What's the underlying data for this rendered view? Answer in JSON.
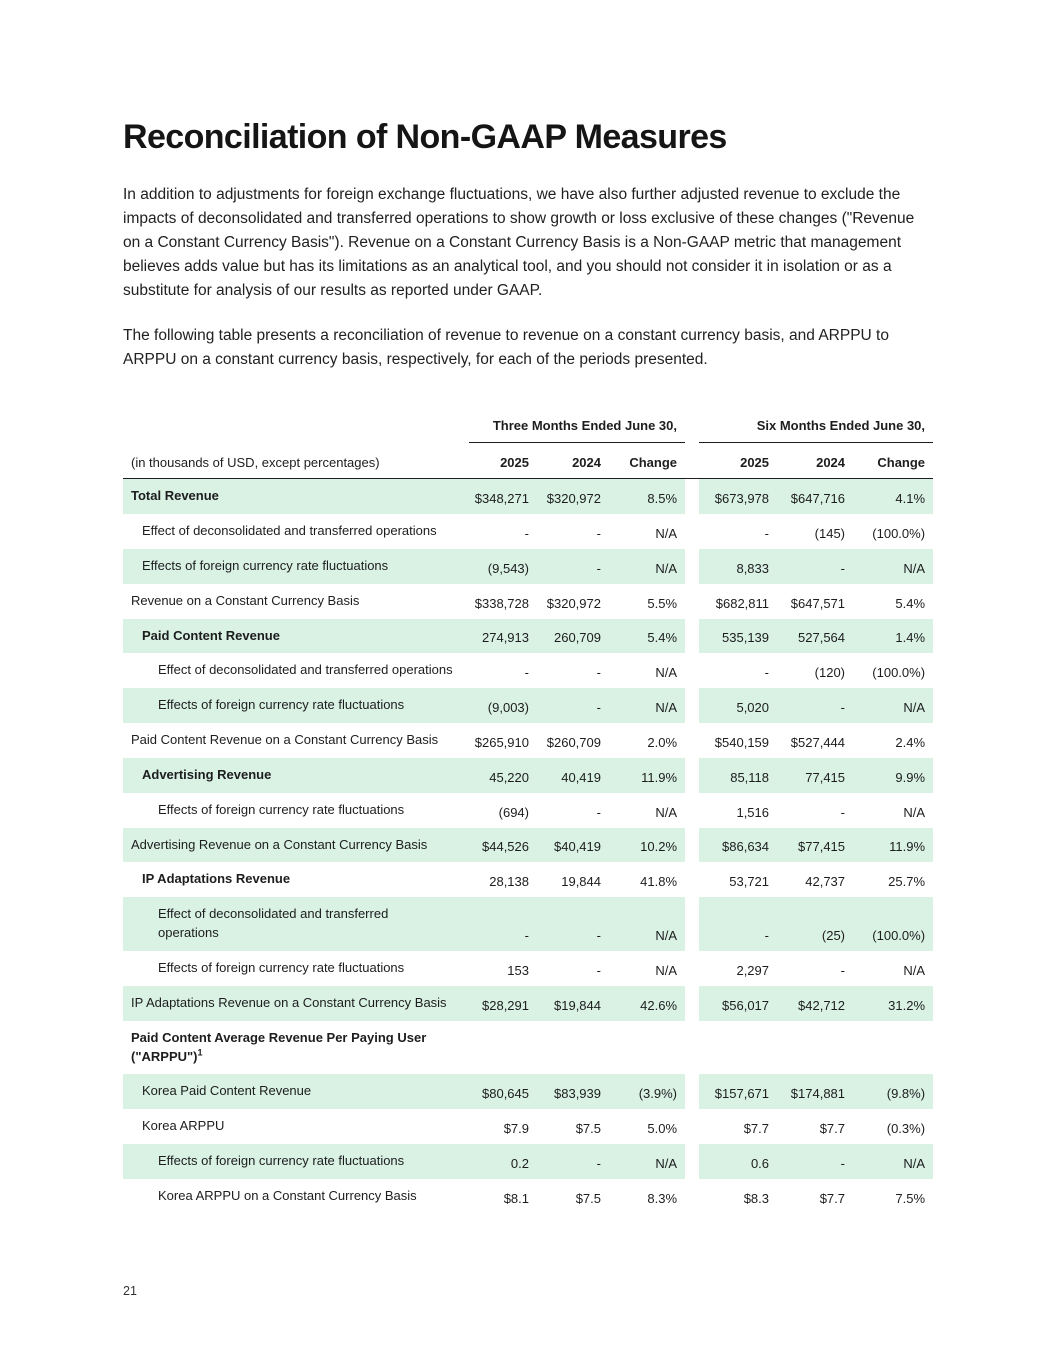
{
  "page": {
    "title": "Reconciliation of Non-GAAP Measures",
    "paragraphs": [
      "In addition to adjustments for foreign exchange fluctuations, we have also further adjusted revenue to exclude the impacts of deconsolidated and transferred operations to show growth or loss exclusive of these changes (\"Revenue on a Constant Currency Basis\"). Revenue on a Constant Currency Basis is a Non-GAAP metric that management believes adds value but has its limitations as an analytical tool, and you should not consider it in isolation or as a substitute for analysis of our results as reported under GAAP.",
      "The following table presents a reconciliation of revenue to revenue on a constant currency basis, and ARPPU to ARPPU on a constant currency basis, respectively, for each of the periods presented."
    ],
    "page_number": "21"
  },
  "table": {
    "group_headers": [
      "Three Months Ended June 30,",
      "Six Months Ended June 30,"
    ],
    "units_note": "(in thousands of USD, except percentages)",
    "column_headers": [
      "2025",
      "2024",
      "Change",
      "2025",
      "2024",
      "Change"
    ],
    "shade_color": "#d9f2e4",
    "rows": [
      {
        "label": "Total Revenue",
        "indent": 0,
        "bold": true,
        "shaded": true,
        "values": [
          "$348,271",
          "$320,972",
          "8.5%",
          "$673,978",
          "$647,716",
          "4.1%"
        ]
      },
      {
        "label": "Effect of deconsolidated and transferred operations",
        "indent": 1,
        "bold": false,
        "shaded": false,
        "values": [
          "-",
          "-",
          "N/A",
          "-",
          "(145)",
          "(100.0%)"
        ]
      },
      {
        "label": "Effects of foreign currency rate fluctuations",
        "indent": 1,
        "bold": false,
        "shaded": true,
        "values": [
          "(9,543)",
          "-",
          "N/A",
          "8,833",
          "-",
          "N/A"
        ]
      },
      {
        "label": "Revenue on a Constant Currency Basis",
        "indent": 0,
        "bold": false,
        "shaded": false,
        "values": [
          "$338,728",
          "$320,972",
          "5.5%",
          "$682,811",
          "$647,571",
          "5.4%"
        ]
      },
      {
        "label": "Paid Content Revenue",
        "indent": 1,
        "bold": true,
        "shaded": true,
        "values": [
          "274,913",
          "260,709",
          "5.4%",
          "535,139",
          "527,564",
          "1.4%"
        ]
      },
      {
        "label": "Effect of deconsolidated and transferred operations",
        "indent": 2,
        "bold": false,
        "shaded": false,
        "values": [
          "-",
          "-",
          "N/A",
          "-",
          "(120)",
          "(100.0%)"
        ]
      },
      {
        "label": "Effects of foreign currency rate fluctuations",
        "indent": 2,
        "bold": false,
        "shaded": true,
        "values": [
          "(9,003)",
          "-",
          "N/A",
          "5,020",
          "-",
          "N/A"
        ]
      },
      {
        "label": "Paid Content Revenue on a Constant Currency Basis",
        "indent": 0,
        "bold": false,
        "shaded": false,
        "values": [
          "$265,910",
          "$260,709",
          "2.0%",
          "$540,159",
          "$527,444",
          "2.4%"
        ]
      },
      {
        "label": "Advertising Revenue",
        "indent": 1,
        "bold": true,
        "shaded": true,
        "values": [
          "45,220",
          "40,419",
          "11.9%",
          "85,118",
          "77,415",
          "9.9%"
        ]
      },
      {
        "label": "Effects of foreign currency rate fluctuations",
        "indent": 2,
        "bold": false,
        "shaded": false,
        "values": [
          "(694)",
          "-",
          "N/A",
          "1,516",
          "-",
          "N/A"
        ]
      },
      {
        "label": "Advertising Revenue on a Constant Currency Basis",
        "indent": 0,
        "bold": false,
        "shaded": true,
        "values": [
          "$44,526",
          "$40,419",
          "10.2%",
          "$86,634",
          "$77,415",
          "11.9%"
        ]
      },
      {
        "label": "IP Adaptations Revenue",
        "indent": 1,
        "bold": true,
        "shaded": false,
        "values": [
          "28,138",
          "19,844",
          "41.8%",
          "53,721",
          "42,737",
          "25.7%"
        ]
      },
      {
        "label": "Effect of deconsolidated and transferred\noperations",
        "indent": 2,
        "bold": false,
        "shaded": true,
        "values": [
          "-",
          "-",
          "N/A",
          "-",
          "(25)",
          "(100.0%)"
        ]
      },
      {
        "label": "Effects of foreign currency rate fluctuations",
        "indent": 2,
        "bold": false,
        "shaded": false,
        "values": [
          "153",
          "-",
          "N/A",
          "2,297",
          "-",
          "N/A"
        ]
      },
      {
        "label": "IP Adaptations Revenue on a Constant Currency Basis",
        "indent": 0,
        "bold": false,
        "shaded": true,
        "values": [
          "$28,291",
          "$19,844",
          "42.6%",
          "$56,017",
          "$42,712",
          "31.2%"
        ]
      },
      {
        "label": "Paid Content Average Revenue Per Paying User (\"ARPPU\")",
        "sup": "1",
        "indent": 0,
        "bold": true,
        "shaded": false,
        "values": [
          "",
          "",
          "",
          "",
          "",
          ""
        ]
      },
      {
        "label": "Korea Paid Content Revenue",
        "indent": 1,
        "bold": false,
        "shaded": true,
        "values": [
          "$80,645",
          "$83,939",
          "(3.9%)",
          "$157,671",
          "$174,881",
          "(9.8%)"
        ]
      },
      {
        "label": "Korea ARPPU",
        "indent": 1,
        "bold": false,
        "shaded": false,
        "values": [
          "$7.9",
          "$7.5",
          "5.0%",
          "$7.7",
          "$7.7",
          "(0.3%)"
        ]
      },
      {
        "label": "Effects of foreign currency rate fluctuations",
        "indent": 2,
        "bold": false,
        "shaded": true,
        "values": [
          "0.2",
          "-",
          "N/A",
          "0.6",
          "-",
          "N/A"
        ]
      },
      {
        "label": "Korea ARPPU on a Constant Currency Basis",
        "indent": 2,
        "bold": false,
        "shaded": false,
        "values": [
          "$8.1",
          "$7.5",
          "8.3%",
          "$8.3",
          "$7.7",
          "7.5%"
        ]
      }
    ]
  }
}
